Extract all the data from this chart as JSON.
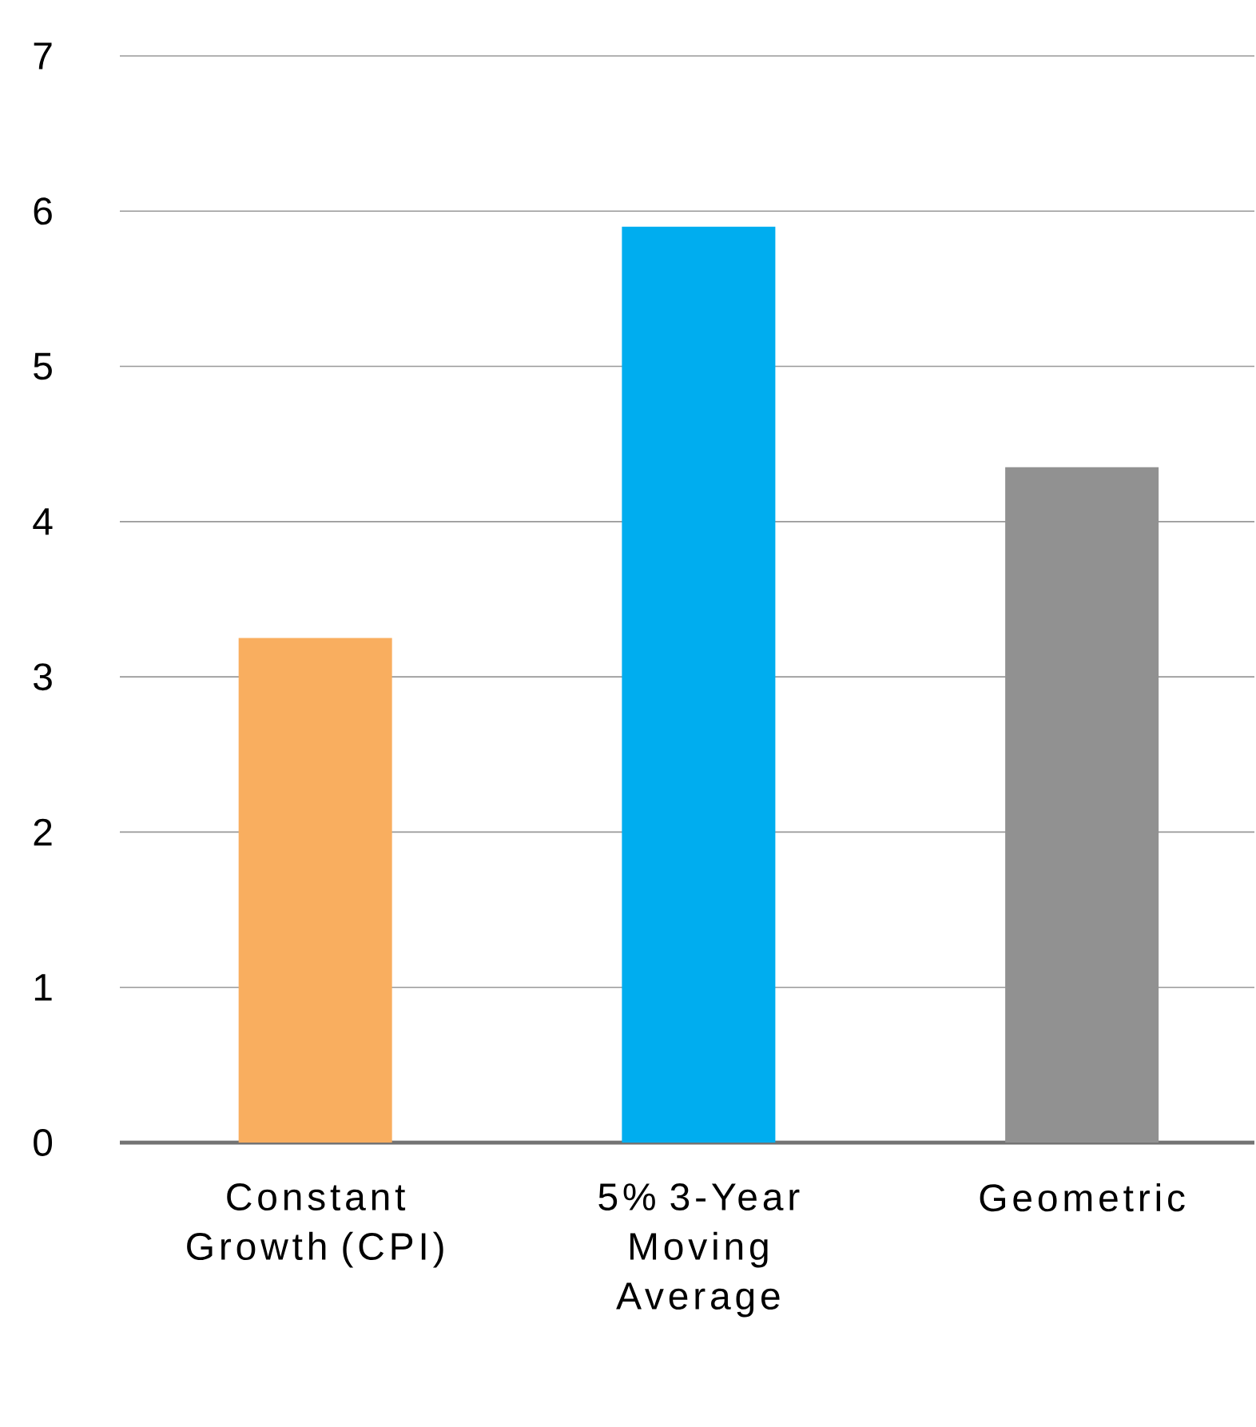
{
  "chart_data": {
    "type": "bar",
    "categories": [
      "Constant Growth (CPI)",
      "5% 3-Year Moving Average",
      "Geometric"
    ],
    "values": [
      3.25,
      5.9,
      4.35
    ],
    "colors": [
      "#f9ae5f",
      "#00adef",
      "#919191"
    ],
    "ylim": [
      0,
      7
    ],
    "yticks": [
      0,
      1,
      2,
      3,
      4,
      5,
      6,
      7
    ],
    "grid": "y"
  }
}
